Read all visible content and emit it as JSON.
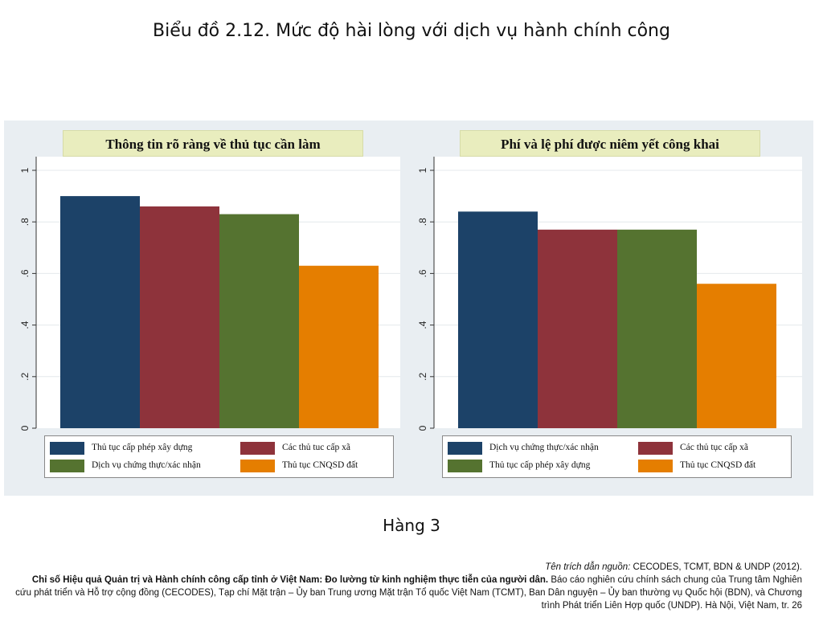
{
  "title": "Biểu đồ 2.12. Mức độ hài lòng với dịch vụ hành chính công",
  "row_label": "Hàng 3",
  "colors": {
    "navy": "#1c4268",
    "maroon": "#8e333b",
    "green": "#557330",
    "orange": "#e57e00",
    "figure_bg": "#e9eef2",
    "panel_title_bg": "#e9edbe"
  },
  "chart_data": [
    {
      "type": "bar",
      "title": "Thông tin rõ ràng về thủ tục cần làm",
      "categories": [
        "Thủ tục cấp phép xây dựng",
        "Các thủ tuc cấp xã",
        "Dịch vụ chứng thực/xác nhận",
        "Thủ tục CNQSD đất"
      ],
      "values": [
        0.9,
        0.86,
        0.83,
        0.63
      ],
      "colors": [
        "#1c4268",
        "#8e333b",
        "#557330",
        "#e57e00"
      ],
      "ylim": [
        0,
        1
      ],
      "yticks": [
        0,
        0.2,
        0.4,
        0.6,
        0.8,
        1
      ],
      "ytick_labels": [
        "0",
        ".2",
        ".4",
        ".6",
        ".8",
        "1"
      ],
      "grid": true,
      "legend": {
        "placement": "bottom",
        "items": [
          {
            "label": "Thủ tục cấp phép xây dựng",
            "color": "#1c4268"
          },
          {
            "label": "Các thủ tuc cấp xã",
            "color": "#8e333b"
          },
          {
            "label": "Dịch vụ chứng thực/xác nhận",
            "color": "#557330"
          },
          {
            "label": "Thủ tục CNQSD đất",
            "color": "#e57e00"
          }
        ]
      }
    },
    {
      "type": "bar",
      "title": "Phí và lệ phí được niêm yết công khai",
      "categories": [
        "Dịch vụ chứng thực/xác nhận",
        "Các thủ tục cấp xã",
        "Thủ tục cấp phép xây dựng",
        "Thủ tục CNQSD đất"
      ],
      "values": [
        0.84,
        0.77,
        0.77,
        0.56
      ],
      "colors": [
        "#1c4268",
        "#8e333b",
        "#557330",
        "#e57e00"
      ],
      "ylim": [
        0,
        1
      ],
      "yticks": [
        0,
        0.2,
        0.4,
        0.6,
        0.8,
        1
      ],
      "ytick_labels": [
        "0",
        ".2",
        ".4",
        ".6",
        ".8",
        "1"
      ],
      "grid": true,
      "legend": {
        "placement": "bottom",
        "items": [
          {
            "label": "Dịch vụ chứng thực/xác nhận",
            "color": "#1c4268"
          },
          {
            "label": "Các thủ tục cấp xã",
            "color": "#8e333b"
          },
          {
            "label": "Thủ tục cấp phép xây dựng",
            "color": "#557330"
          },
          {
            "label": "Thủ tục CNQSD đất",
            "color": "#e57e00"
          }
        ]
      }
    }
  ],
  "citation": {
    "source_label": "Tên trích dẫn nguồn:",
    "source_text": "CECODES, TCMT, BDN & UNDP (2012).",
    "report_title": "Chỉ số Hiệu quả Quản trị và Hành chính công cấp tỉnh ở Việt Nam: Đo lường từ kinh nghiệm thực tiễn của người dân.",
    "report_desc": "Báo cáo nghiên cứu chính sách chung của Trung tâm Nghiên cứu phát triển và Hỗ trợ cộng đồng (CECODES), Tạp chí Mặt trận – Ủy ban Trung ương Mặt trận Tổ quốc Việt Nam (TCMT), Ban Dân nguyện – Ủy ban thường vụ Quốc hội (BDN), và Chương trình Phát triển Liên Hợp quốc (UNDP). Hà Nội, Việt Nam, tr. 26"
  }
}
